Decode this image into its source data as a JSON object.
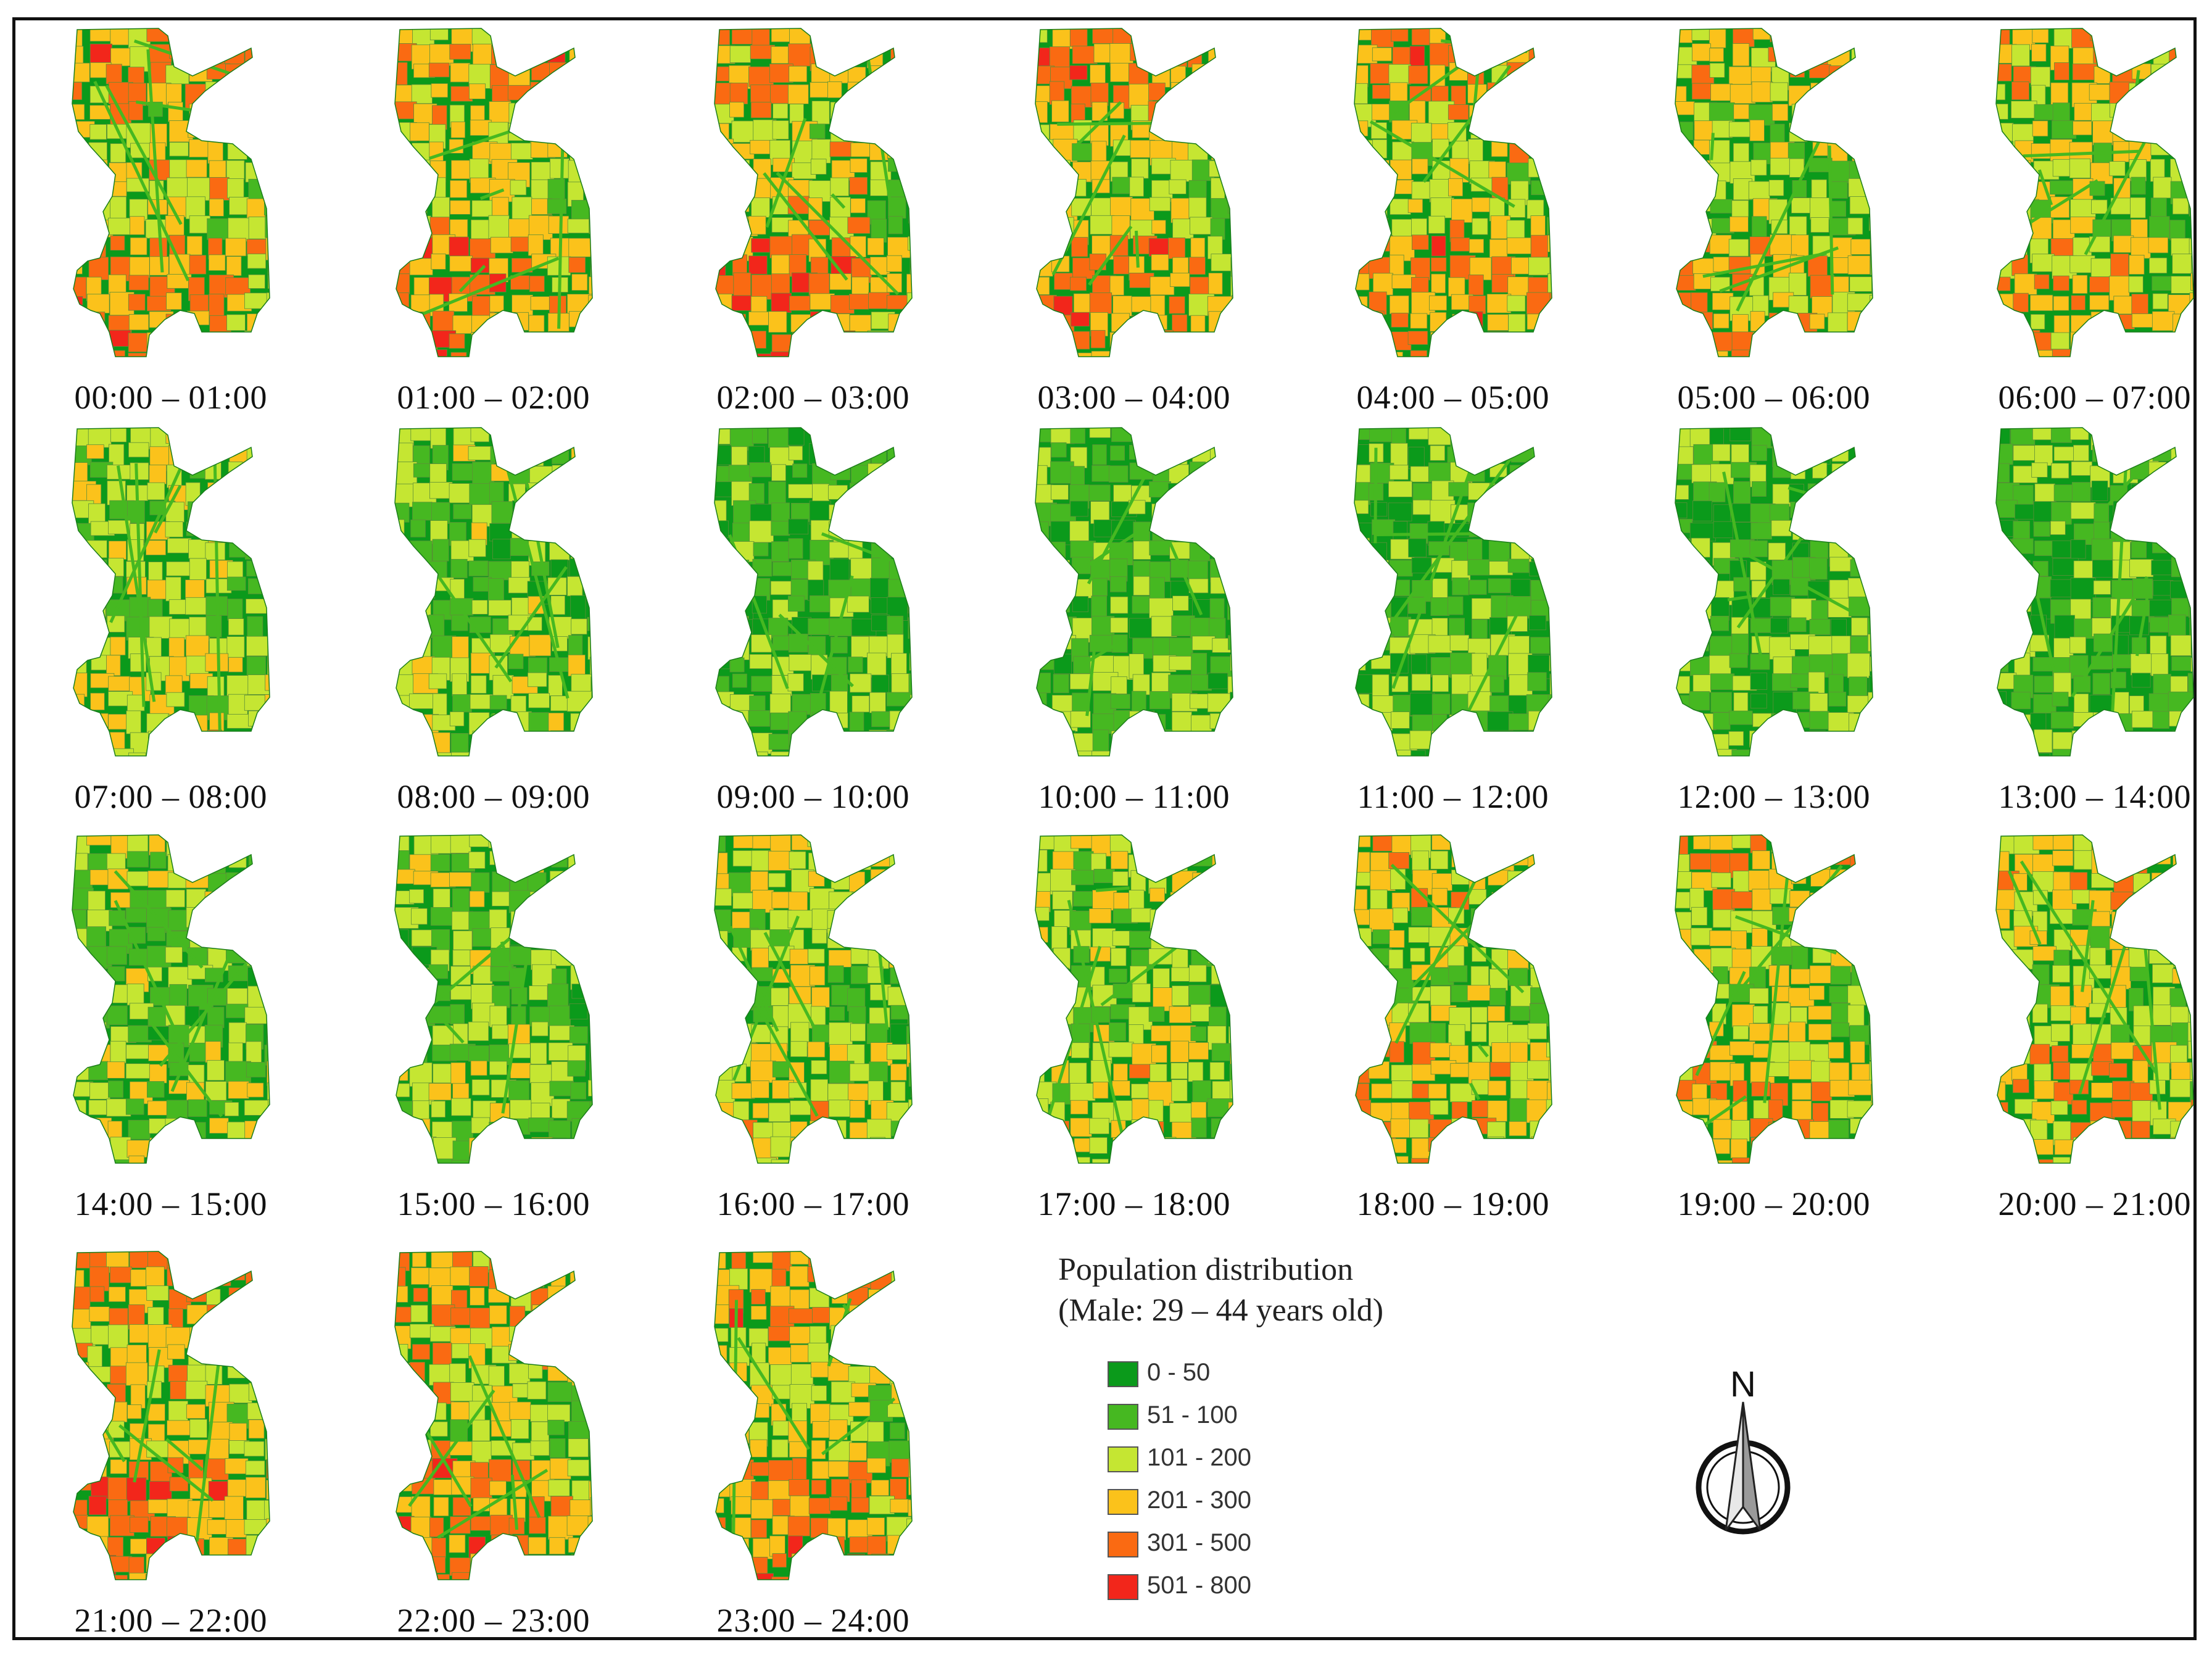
{
  "colors": {
    "c0": "#0b9a1b",
    "c1": "#46b821",
    "c2": "#c5e632",
    "c3": "#fbc21b",
    "c4": "#fa6a12",
    "c5": "#f2261b"
  },
  "panels": [
    {
      "label": "00:00 – 01:00",
      "level": 5
    },
    {
      "label": "01:00 – 02:00",
      "level": 5
    },
    {
      "label": "02:00 – 03:00",
      "level": 5
    },
    {
      "label": "03:00 – 04:00",
      "level": 5
    },
    {
      "label": "04:00 – 05:00",
      "level": 5
    },
    {
      "label": "05:00 – 06:00",
      "level": 4
    },
    {
      "label": "06:00 – 07:00",
      "level": 4
    },
    {
      "label": "07:00 – 08:00",
      "level": 3
    },
    {
      "label": "08:00 – 09:00",
      "level": 2
    },
    {
      "label": "09:00 – 10:00",
      "level": 1
    },
    {
      "label": "10:00 – 11:00",
      "level": 1
    },
    {
      "label": "11:00 – 12:00",
      "level": 1
    },
    {
      "label": "12:00 – 13:00",
      "level": 1
    },
    {
      "label": "13:00 – 14:00",
      "level": 1
    },
    {
      "label": "14:00 – 15:00",
      "level": 2
    },
    {
      "label": "15:00 – 16:00",
      "level": 2
    },
    {
      "label": "16:00 – 17:00",
      "level": 3
    },
    {
      "label": "17:00 – 18:00",
      "level": 3
    },
    {
      "label": "18:00 – 19:00",
      "level": 4
    },
    {
      "label": "19:00 – 20:00",
      "level": 4
    },
    {
      "label": "20:00 – 21:00",
      "level": 4
    },
    {
      "label": "21:00 – 22:00",
      "level": 5
    },
    {
      "label": "22:00 – 23:00",
      "level": 5
    },
    {
      "label": "23:00 – 24:00",
      "level": 5
    }
  ],
  "legend": {
    "title_line1": "Population distribution",
    "title_line2": "(Male: 29 – 44 years old)",
    "items": [
      {
        "label": "0 - 50",
        "color": "#0b9a1b"
      },
      {
        "label": "51 - 100",
        "color": "#46b821"
      },
      {
        "label": "101 - 200",
        "color": "#c5e632"
      },
      {
        "label": "201 - 300",
        "color": "#fbc21b"
      },
      {
        "label": "301 - 500",
        "color": "#fa6a12"
      },
      {
        "label": "501 - 800",
        "color": "#f2261b"
      }
    ]
  },
  "north_arrow": {
    "letter": "N",
    "icon": "north-arrow-icon"
  }
}
